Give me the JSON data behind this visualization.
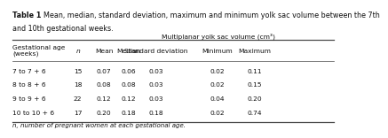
{
  "title_bold": "Table 1",
  "title_rest": "  Mean, median, standard deviation, maximum and minimum yolk sac volume between the 7th and 10th gestational weeks.",
  "col_header_main": "Multiplanar yolk sac volume (cm³)",
  "col_header_sub": [
    "Mean",
    "Median",
    "Standard deviation",
    "Minimum",
    "Maximum"
  ],
  "row_header_col1": "Gestational age\n(weeks)",
  "row_header_col2": "n",
  "rows": [
    [
      "7 to 7 + 6",
      "15",
      "0.07",
      "0.06",
      "0.03",
      "0.02",
      "0.11"
    ],
    [
      "8 to 8 + 6",
      "18",
      "0.08",
      "0.08",
      "0.03",
      "0.02",
      "0.15"
    ],
    [
      "9 to 9 + 6",
      "22",
      "0.12",
      "0.12",
      "0.03",
      "0.04",
      "0.20"
    ],
    [
      "10 to 10 + 6",
      "17",
      "0.20",
      "0.18",
      "0.18",
      "0.02",
      "0.74"
    ]
  ],
  "footnote": "n, number of pregnant women at each gestational age.",
  "bg_color": "#ffffff",
  "line_color": "#4a4a4a",
  "text_color": "#111111"
}
